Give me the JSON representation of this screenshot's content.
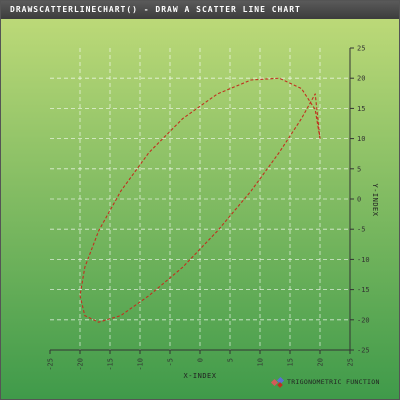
{
  "title": "DRAWSCATTERLINECHART() - DRAW A SCATTER LINE CHART",
  "colors": {
    "plot_top": "#c2dc7a",
    "plot_bottom": "#3f9a4a",
    "series_line": "#c0301f",
    "grid": "#ffffff",
    "title_bar": "#4a4a4a"
  },
  "chart_data": {
    "type": "line",
    "title": "",
    "xlabel": "X-INDEX",
    "ylabel": "Y-INDEX",
    "xlim": [
      -25,
      25
    ],
    "ylim": [
      -25,
      25
    ],
    "x_ticks": [
      "-25",
      "-20",
      "-15",
      "-10",
      "-5",
      "0",
      "5",
      "10",
      "15",
      "20",
      "25"
    ],
    "y_ticks": [
      "-25",
      "-20",
      "-15",
      "-10",
      "-5",
      "0",
      "5",
      "10",
      "15",
      "20",
      "25"
    ],
    "grid": true,
    "legend_position": "bottom-right",
    "series": [
      {
        "name": "TRIGONOMETRIC FUNCTION",
        "style": "dashed",
        "x": [
          20,
          19.2,
          16.9,
          13.2,
          8.5,
          2.9,
          -2.9,
          -8.5,
          -13.2,
          -16.9,
          -19.2,
          -20,
          -19.2,
          -16.9,
          -13.2,
          -8.5,
          -2.9,
          2.9,
          8.5,
          13.2,
          16.9,
          19.2,
          20
        ],
        "y": [
          10,
          14.8,
          18.3,
          20,
          19.7,
          17.4,
          13.3,
          7.7,
          1.3,
          -5.3,
          -11.3,
          -16,
          -19.3,
          -20.4,
          -19.3,
          -16,
          -11.3,
          -5.3,
          1.3,
          7.7,
          13.3,
          17.4,
          10
        ]
      }
    ]
  }
}
